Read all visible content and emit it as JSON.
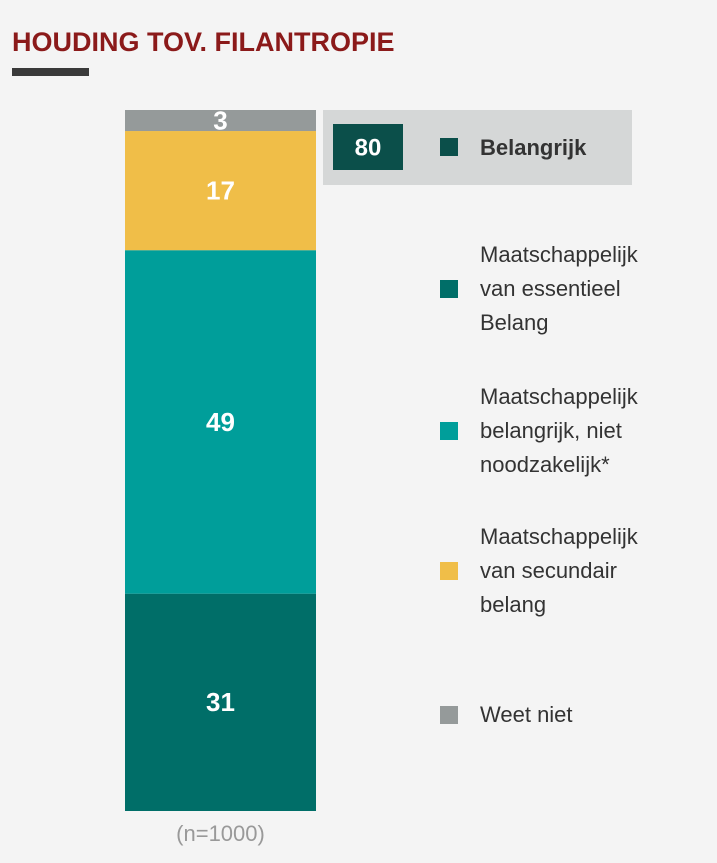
{
  "chart_data": {
    "type": "bar",
    "stacked": true,
    "title": "HOUDING TOV. FILANTROPIE",
    "categories": [
      "(n=1000)"
    ],
    "ylim": [
      0,
      100
    ],
    "series": [
      {
        "name": "Maatschappelijk van essentieel Belang",
        "color": "#006e68",
        "values": [
          31
        ]
      },
      {
        "name": "Maatschappelijk belangrijk, niet noodzakelijk*",
        "color": "#009e9a",
        "values": [
          49
        ]
      },
      {
        "name": "Maatschappelijk van secundair belang",
        "color": "#f0be48",
        "values": [
          17
        ]
      },
      {
        "name": "Weet niet",
        "color": "#959a9a",
        "values": [
          3
        ]
      }
    ],
    "summary": {
      "value": 80,
      "name": "Belangrijk",
      "color": "#0b4f4a"
    }
  }
}
